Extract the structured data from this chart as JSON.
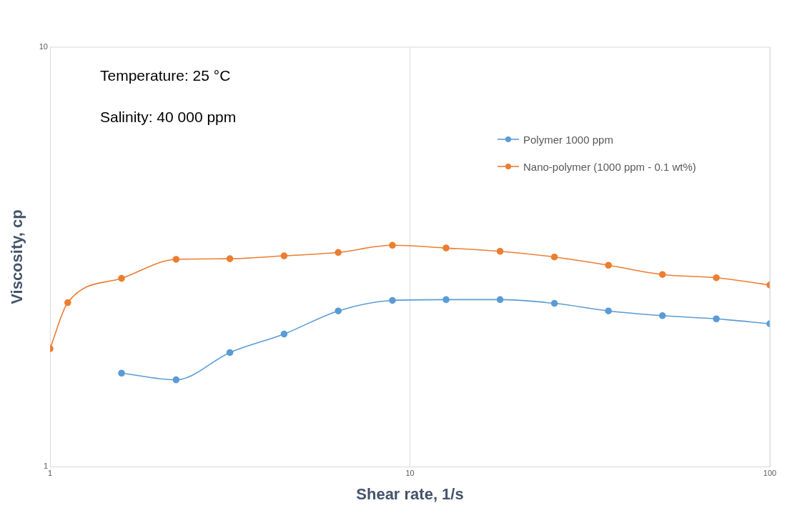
{
  "chart_data": {
    "type": "line",
    "xlabel": "Shear rate, 1/s",
    "ylabel": "Viscosity, cp",
    "annotations": [
      "Temperature: 25 °C",
      "Salinity: 40 000 ppm"
    ],
    "x": [
      1,
      1.12,
      1.58,
      2.24,
      3.16,
      4.47,
      6.32,
      8.94,
      12.6,
      17.8,
      25.2,
      35.6,
      50.3,
      71,
      100
    ],
    "series": [
      {
        "name": "Polymer 1000 ppm",
        "color": "#5b9bd5",
        "values": [
          null,
          null,
          1.67,
          1.61,
          1.87,
          2.07,
          2.35,
          2.49,
          2.5,
          2.5,
          2.45,
          2.35,
          2.29,
          2.25,
          2.19
        ]
      },
      {
        "name": "Nano-polymer (1000 ppm - 0.1 wt%)",
        "color": "#ed7d31",
        "values": [
          1.91,
          2.46,
          2.81,
          3.12,
          3.13,
          3.18,
          3.24,
          3.37,
          3.32,
          3.26,
          3.16,
          3.02,
          2.87,
          2.82,
          2.71
        ]
      }
    ],
    "xlim": [
      1,
      100
    ],
    "ylim": [
      1,
      10
    ],
    "xticks": [
      1,
      10,
      100
    ],
    "yticks": [
      1,
      10
    ],
    "log": "xy",
    "grid": "x",
    "legend": "top right",
    "marker": "circle",
    "line_style": "solid"
  }
}
